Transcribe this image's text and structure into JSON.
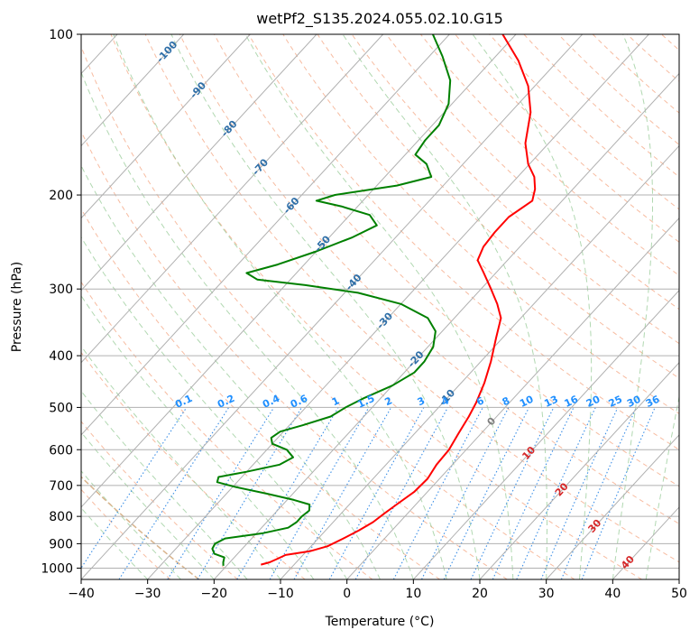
{
  "chart_data": {
    "type": "line",
    "chart_kind": "skew-T log-P diagram",
    "title": "wetPf2_S135.2024.055.02.10.G15",
    "xlabel": "Temperature (°C)",
    "ylabel": "Pressure (hPa)",
    "xlim": [
      -40,
      50
    ],
    "ylim": [
      1050,
      100
    ],
    "y_scale": "log",
    "x_ticks": [
      -40,
      -30,
      -20,
      -10,
      0,
      10,
      20,
      30,
      40,
      50
    ],
    "x_tick_labels": [
      "−40",
      "−30",
      "−20",
      "−10",
      "0",
      "10",
      "20",
      "30",
      "40",
      "50"
    ],
    "y_ticks": [
      100,
      200,
      300,
      400,
      500,
      600,
      700,
      800,
      900,
      1000
    ],
    "y_tick_labels": [
      "100",
      "200",
      "300",
      "400",
      "500",
      "600",
      "700",
      "800",
      "900",
      "1000"
    ],
    "grid": true,
    "colors": {
      "temperature": "#ff0000",
      "dewpoint": "#008000",
      "dry_adiabat": "#f4a582",
      "moist_adiabat": "#90c890",
      "mixing_ratio": "#3a8ee6",
      "mixing_ratio_label": "#1f8fff",
      "isotherm_label": "#2f6fa8",
      "warm_isotherm_label": "#d62728",
      "zero_label": "#7f7f7f",
      "lcl_curve": "#d9b48c",
      "grid": "#b0b0b0"
    },
    "series": [
      {
        "name": "",
        "role": "temperature",
        "points": [
          {
            "p": 985,
            "t": -15.0
          },
          {
            "p": 975,
            "t": -14.0
          },
          {
            "p": 960,
            "t": -13.3
          },
          {
            "p": 945,
            "t": -12.6
          },
          {
            "p": 930,
            "t": -9.5
          },
          {
            "p": 910,
            "t": -7.5
          },
          {
            "p": 880,
            "t": -6.2
          },
          {
            "p": 850,
            "t": -5.0
          },
          {
            "p": 820,
            "t": -4.0
          },
          {
            "p": 790,
            "t": -3.5
          },
          {
            "p": 760,
            "t": -2.9
          },
          {
            "p": 720,
            "t": -2.0
          },
          {
            "p": 680,
            "t": -1.8
          },
          {
            "p": 640,
            "t": -2.4
          },
          {
            "p": 600,
            "t": -2.6
          },
          {
            "p": 560,
            "t": -3.4
          },
          {
            "p": 520,
            "t": -4.2
          },
          {
            "p": 490,
            "t": -5.0
          },
          {
            "p": 450,
            "t": -6.5
          },
          {
            "p": 410,
            "t": -8.5
          },
          {
            "p": 370,
            "t": -11.0
          },
          {
            "p": 340,
            "t": -13.0
          },
          {
            "p": 320,
            "t": -15.5
          },
          {
            "p": 300,
            "t": -18.5
          },
          {
            "p": 280,
            "t": -21.8
          },
          {
            "p": 265,
            "t": -24.5
          },
          {
            "p": 250,
            "t": -25.5
          },
          {
            "p": 235,
            "t": -25.8
          },
          {
            "p": 220,
            "t": -25.8
          },
          {
            "p": 205,
            "t": -24.5
          },
          {
            "p": 195,
            "t": -25.7
          },
          {
            "p": 185,
            "t": -27.5
          },
          {
            "p": 175,
            "t": -30.2
          },
          {
            "p": 160,
            "t": -33.5
          },
          {
            "p": 140,
            "t": -37.0
          },
          {
            "p": 125,
            "t": -41.0
          },
          {
            "p": 112,
            "t": -46.0
          },
          {
            "p": 100,
            "t": -52.0
          }
        ]
      },
      {
        "name": "",
        "role": "dewpoint",
        "points": [
          {
            "p": 990,
            "t": -20.5
          },
          {
            "p": 975,
            "t": -21.0
          },
          {
            "p": 955,
            "t": -21.5
          },
          {
            "p": 940,
            "t": -23.5
          },
          {
            "p": 920,
            "t": -24.5
          },
          {
            "p": 900,
            "t": -24.8
          },
          {
            "p": 880,
            "t": -24.0
          },
          {
            "p": 860,
            "t": -19.0
          },
          {
            "p": 840,
            "t": -16.0
          },
          {
            "p": 820,
            "t": -15.5
          },
          {
            "p": 800,
            "t": -15.5
          },
          {
            "p": 780,
            "t": -15.2
          },
          {
            "p": 760,
            "t": -16.0
          },
          {
            "p": 745,
            "t": -19.0
          },
          {
            "p": 725,
            "t": -24.0
          },
          {
            "p": 705,
            "t": -29.5
          },
          {
            "p": 690,
            "t": -33.0
          },
          {
            "p": 675,
            "t": -33.5
          },
          {
            "p": 660,
            "t": -30.0
          },
          {
            "p": 640,
            "t": -26.0
          },
          {
            "p": 620,
            "t": -25.0
          },
          {
            "p": 600,
            "t": -27.0
          },
          {
            "p": 585,
            "t": -30.0
          },
          {
            "p": 570,
            "t": -31.0
          },
          {
            "p": 555,
            "t": -30.5
          },
          {
            "p": 540,
            "t": -28.0
          },
          {
            "p": 520,
            "t": -25.0
          },
          {
            "p": 500,
            "t": -24.0
          },
          {
            "p": 480,
            "t": -22.5
          },
          {
            "p": 455,
            "t": -20.0
          },
          {
            "p": 430,
            "t": -18.5
          },
          {
            "p": 410,
            "t": -18.5
          },
          {
            "p": 385,
            "t": -19.2
          },
          {
            "p": 360,
            "t": -21.0
          },
          {
            "p": 340,
            "t": -24.0
          },
          {
            "p": 320,
            "t": -30.0
          },
          {
            "p": 305,
            "t": -38.0
          },
          {
            "p": 295,
            "t": -47.0
          },
          {
            "p": 288,
            "t": -55.0
          },
          {
            "p": 280,
            "t": -57.5
          },
          {
            "p": 270,
            "t": -54.0
          },
          {
            "p": 255,
            "t": -50.0
          },
          {
            "p": 240,
            "t": -46.5
          },
          {
            "p": 228,
            "t": -44.5
          },
          {
            "p": 218,
            "t": -47.0
          },
          {
            "p": 210,
            "t": -52.5
          },
          {
            "p": 205,
            "t": -57.0
          },
          {
            "p": 200,
            "t": -55.0
          },
          {
            "p": 192,
            "t": -47.0
          },
          {
            "p": 185,
            "t": -43.0
          },
          {
            "p": 175,
            "t": -45.5
          },
          {
            "p": 168,
            "t": -48.5
          },
          {
            "p": 158,
            "t": -49.0
          },
          {
            "p": 148,
            "t": -49.0
          },
          {
            "p": 135,
            "t": -50.5
          },
          {
            "p": 122,
            "t": -53.5
          },
          {
            "p": 110,
            "t": -58.0
          },
          {
            "p": 100,
            "t": -62.5
          }
        ]
      }
    ],
    "isotherm_labels": [
      {
        "text": "-100",
        "t": -100
      },
      {
        "text": "-90",
        "t": -90
      },
      {
        "text": "-80",
        "t": -80
      },
      {
        "text": "-70",
        "t": -70
      },
      {
        "text": "-60",
        "t": -60
      },
      {
        "text": "-50",
        "t": -50
      },
      {
        "text": "-40",
        "t": -40
      },
      {
        "text": "-30",
        "t": -30
      },
      {
        "text": "-20",
        "t": -20
      },
      {
        "text": "-10",
        "t": -10
      },
      {
        "text": "0",
        "t": 0
      },
      {
        "text": "10",
        "t": 10
      },
      {
        "text": "20",
        "t": 20
      },
      {
        "text": "30",
        "t": 30
      },
      {
        "text": "40",
        "t": 40
      }
    ],
    "mixing_ratio_labels": [
      "0.1",
      "0.2",
      "0.4",
      "0.6",
      "1",
      "1.5",
      "2",
      "3",
      "4",
      "6",
      "8",
      "10",
      "13",
      "16",
      "20",
      "25",
      "30",
      "36"
    ]
  }
}
